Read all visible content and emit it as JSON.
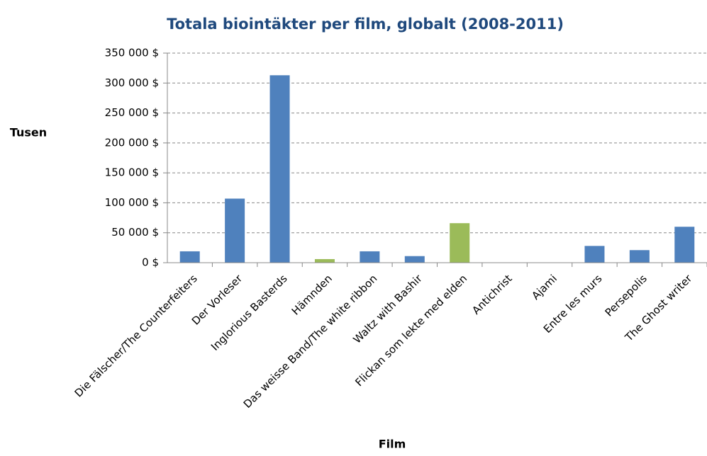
{
  "chart_data": {
    "type": "bar",
    "title": "Totala biointäkter per film, globalt (2008-2011)",
    "y_label": "Tusen",
    "x_label": "Film",
    "categories": [
      "Die Fälscher/The Counterfeiters",
      "Der Vorleser",
      "Inglorious Basterds",
      "Hämnden",
      "Das weisse Band/The white ribbon",
      "Waltz with Bashir",
      "Flickan som lekte med elden",
      "Antichrist",
      "Ajami",
      "Entre les murs",
      "Persepolis",
      "The Ghost writer"
    ],
    "values": [
      19000,
      107000,
      313000,
      6000,
      19000,
      11000,
      66000,
      0,
      0,
      28000,
      21000,
      60000
    ],
    "colors": [
      "#4f81bd",
      "#4f81bd",
      "#4f81bd",
      "#9bbb59",
      "#4f81bd",
      "#4f81bd",
      "#9bbb59",
      "#4f81bd",
      "#4f81bd",
      "#4f81bd",
      "#4f81bd",
      "#4f81bd"
    ],
    "ylim": [
      0,
      350000
    ],
    "yticks": [
      {
        "value": 0,
        "label": "0 $"
      },
      {
        "value": 50000,
        "label": "50 000 $"
      },
      {
        "value": 100000,
        "label": "100 000 $"
      },
      {
        "value": 150000,
        "label": "150 000 $"
      },
      {
        "value": 200000,
        "label": "200 000 $"
      },
      {
        "value": 250000,
        "label": "250 000 $"
      },
      {
        "value": 300000,
        "label": "300 000 $"
      },
      {
        "value": 350000,
        "label": "350 000 $"
      }
    ],
    "grid": true
  }
}
